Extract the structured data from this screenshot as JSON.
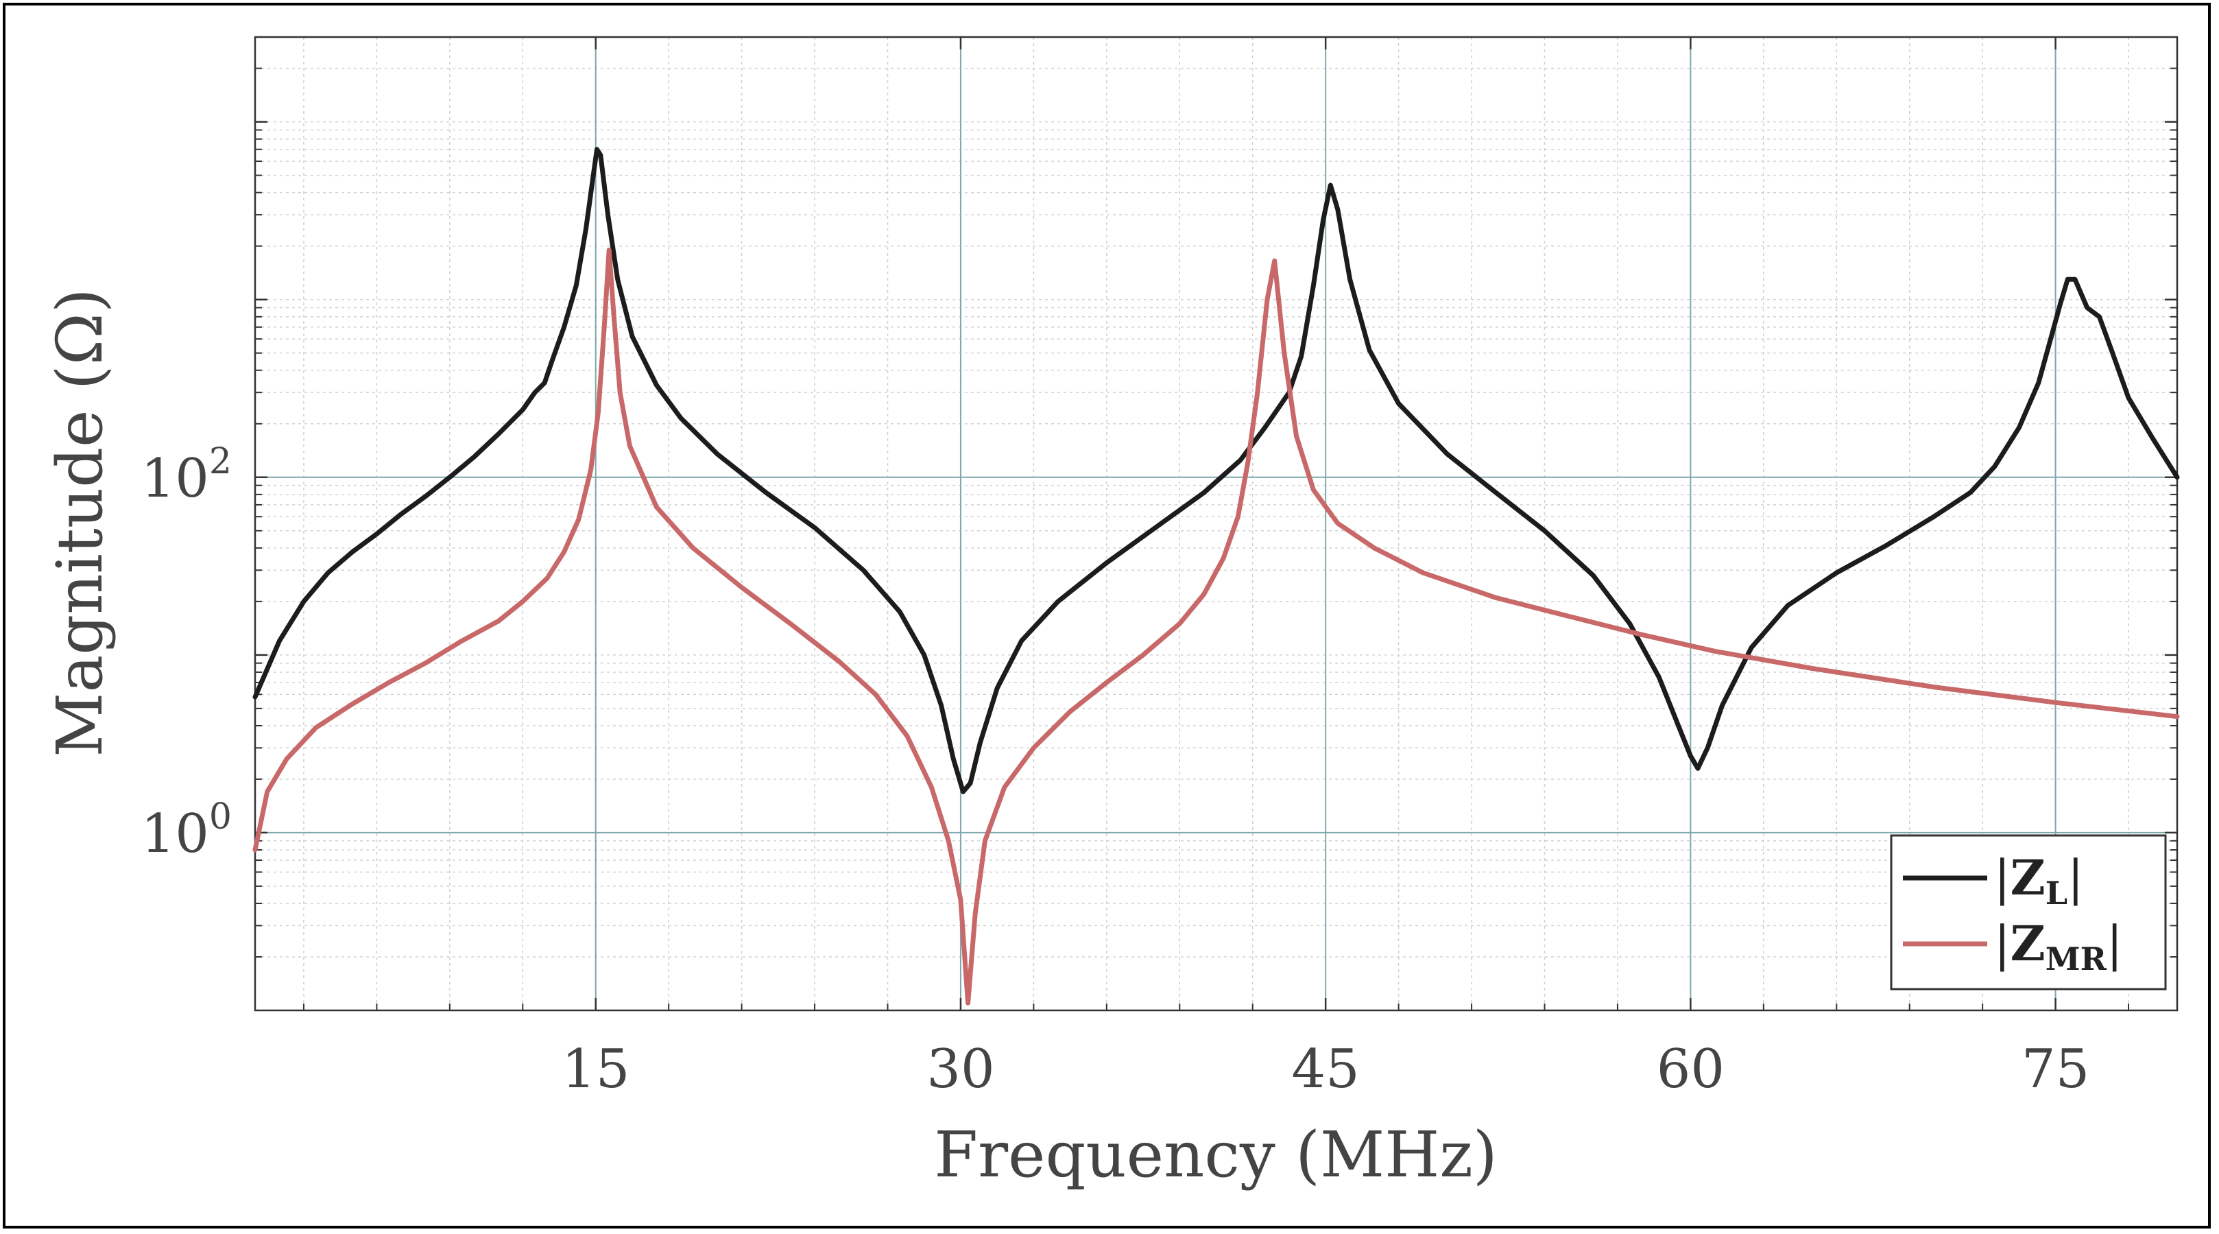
{
  "chart_data": {
    "type": "line",
    "title": "",
    "xlabel": "Frequency (MHz)",
    "ylabel": "Magnitude (Ω)",
    "x_scale": "linear",
    "y_scale": "log",
    "xlim": [
      1,
      80
    ],
    "ylim": [
      0.1,
      30000
    ],
    "x_ticks": [
      15,
      30,
      45,
      60,
      75
    ],
    "x_tick_labels": [
      "15",
      "30",
      "45",
      "60",
      "75"
    ],
    "y_ticks": [
      {
        "value": 1,
        "base": "10",
        "exp": "0"
      },
      {
        "value": 100,
        "base": "10",
        "exp": "2"
      }
    ],
    "grid": true,
    "legend_position": "bottom-right",
    "series": [
      {
        "name": "|Z_L|",
        "legend_main": "Z",
        "legend_sub": "L",
        "color": "#1c1c1c",
        "points": [
          [
            1,
            5.8
          ],
          [
            2,
            12
          ],
          [
            3,
            20
          ],
          [
            4,
            29
          ],
          [
            5,
            38
          ],
          [
            6,
            48
          ],
          [
            7,
            62
          ],
          [
            8,
            78
          ],
          [
            9,
            100
          ],
          [
            10,
            130
          ],
          [
            11,
            175
          ],
          [
            12,
            240
          ],
          [
            12.5,
            300
          ],
          [
            12.9,
            340
          ],
          [
            13.2,
            450
          ],
          [
            13.7,
            700
          ],
          [
            14.2,
            1200
          ],
          [
            14.6,
            2500
          ],
          [
            14.9,
            5000
          ],
          [
            15.05,
            7000
          ],
          [
            15.2,
            6500
          ],
          [
            15.5,
            3000
          ],
          [
            15.9,
            1300
          ],
          [
            16.5,
            620
          ],
          [
            17.5,
            330
          ],
          [
            18.5,
            215
          ],
          [
            20,
            135
          ],
          [
            22,
            82
          ],
          [
            24,
            52
          ],
          [
            26,
            30
          ],
          [
            27.5,
            17.5
          ],
          [
            28.5,
            10
          ],
          [
            29.2,
            5.2
          ],
          [
            29.7,
            2.6
          ],
          [
            30.1,
            1.7
          ],
          [
            30.4,
            1.9
          ],
          [
            30.8,
            3.2
          ],
          [
            31.5,
            6.5
          ],
          [
            32.5,
            12
          ],
          [
            34,
            20
          ],
          [
            36,
            33
          ],
          [
            38,
            52
          ],
          [
            40,
            82
          ],
          [
            41.5,
            125
          ],
          [
            42.5,
            190
          ],
          [
            43.5,
            300
          ],
          [
            44,
            480
          ],
          [
            44.5,
            1200
          ],
          [
            44.9,
            2800
          ],
          [
            45.2,
            4400
          ],
          [
            45.5,
            3200
          ],
          [
            46,
            1300
          ],
          [
            46.8,
            520
          ],
          [
            48,
            260
          ],
          [
            50,
            135
          ],
          [
            52,
            82
          ],
          [
            54,
            50
          ],
          [
            56,
            28
          ],
          [
            57.5,
            15
          ],
          [
            58.7,
            7.5
          ],
          [
            59.5,
            4
          ],
          [
            60,
            2.7
          ],
          [
            60.3,
            2.3
          ],
          [
            60.7,
            3
          ],
          [
            61.3,
            5.2
          ],
          [
            62.5,
            11
          ],
          [
            64,
            19
          ],
          [
            66,
            29
          ],
          [
            68,
            41
          ],
          [
            70,
            60
          ],
          [
            71.5,
            82
          ],
          [
            72.5,
            115
          ],
          [
            73.5,
            190
          ],
          [
            74.3,
            340
          ],
          [
            74.8,
            600
          ],
          [
            75.2,
            950
          ],
          [
            75.5,
            1300
          ],
          [
            75.8,
            1300
          ],
          [
            76.3,
            900
          ],
          [
            76.8,
            800
          ],
          [
            77.3,
            520
          ],
          [
            78,
            280
          ],
          [
            79,
            165
          ],
          [
            80,
            100
          ]
        ]
      },
      {
        "name": "|Z_MR|",
        "legend_main": "Z",
        "legend_sub": "MR",
        "color": "#c86868",
        "points": [
          [
            1,
            0.8
          ],
          [
            1.5,
            1.7
          ],
          [
            2.3,
            2.6
          ],
          [
            3.5,
            3.9
          ],
          [
            5,
            5.3
          ],
          [
            6.5,
            7
          ],
          [
            8,
            9
          ],
          [
            9.5,
            12
          ],
          [
            11,
            15.5
          ],
          [
            12,
            20
          ],
          [
            13,
            27
          ],
          [
            13.7,
            38
          ],
          [
            14.3,
            58
          ],
          [
            14.8,
            110
          ],
          [
            15.1,
            230
          ],
          [
            15.35,
            700
          ],
          [
            15.55,
            1900
          ],
          [
            15.75,
            800
          ],
          [
            16,
            300
          ],
          [
            16.4,
            150
          ],
          [
            17.5,
            68
          ],
          [
            19,
            40
          ],
          [
            21,
            24
          ],
          [
            23,
            15
          ],
          [
            25,
            9.2
          ],
          [
            26.5,
            6
          ],
          [
            27.8,
            3.5
          ],
          [
            28.8,
            1.8
          ],
          [
            29.5,
            0.9
          ],
          [
            30,
            0.42
          ],
          [
            30.3,
            0.11
          ],
          [
            30.6,
            0.35
          ],
          [
            31,
            0.9
          ],
          [
            31.8,
            1.8
          ],
          [
            33,
            3
          ],
          [
            34.5,
            4.8
          ],
          [
            36,
            7
          ],
          [
            37.5,
            10
          ],
          [
            39,
            15
          ],
          [
            40,
            22
          ],
          [
            40.8,
            35
          ],
          [
            41.4,
            60
          ],
          [
            41.8,
            120
          ],
          [
            42.2,
            300
          ],
          [
            42.6,
            1000
          ],
          [
            42.9,
            1650
          ],
          [
            43.3,
            500
          ],
          [
            43.8,
            170
          ],
          [
            44.5,
            85
          ],
          [
            45.5,
            55
          ],
          [
            47,
            40
          ],
          [
            49,
            29
          ],
          [
            52,
            21
          ],
          [
            55,
            16.5
          ],
          [
            58,
            13
          ],
          [
            61,
            10.5
          ],
          [
            65,
            8.4
          ],
          [
            70,
            6.6
          ],
          [
            75,
            5.4
          ],
          [
            80,
            4.5
          ]
        ]
      }
    ]
  }
}
